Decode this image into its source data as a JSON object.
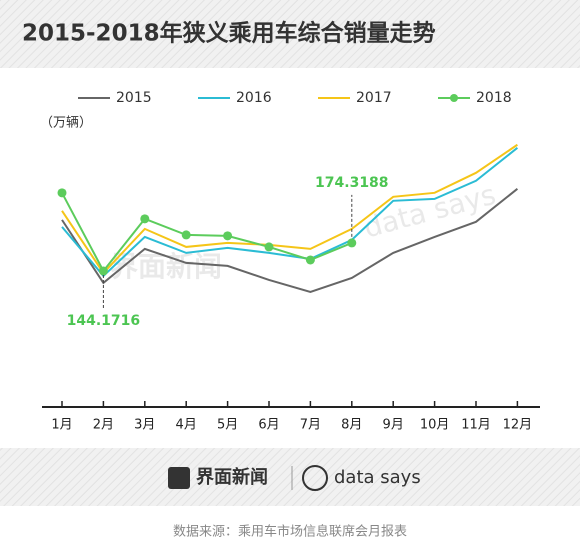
{
  "chart_data": {
    "type": "line",
    "title": "2015-2018年狭义乘用车综合销量走势",
    "unit_label": "（万辆）",
    "categories": [
      "1月",
      "2月",
      "3月",
      "4月",
      "5月",
      "6月",
      "7月",
      "8月",
      "9月",
      "10月",
      "11月",
      "12月"
    ],
    "series": [
      {
        "name": "2015",
        "color": "#666666",
        "values": [
          199.1,
          131.3,
          167.9,
          152.8,
          149.6,
          134.5,
          121.6,
          136.6,
          163.6,
          180.8,
          197.0,
          232.5
        ]
      },
      {
        "name": "2016",
        "color": "#2bbcd4",
        "values": [
          191.6,
          138.8,
          180.8,
          163.6,
          169.0,
          163.6,
          157.1,
          177.6,
          219.6,
          221.7,
          241.1,
          276.6
        ]
      },
      {
        "name": "2017",
        "color": "#f5c518",
        "values": [
          208.8,
          142.0,
          189.4,
          170.0,
          174.3,
          172.2,
          167.9,
          189.4,
          223.9,
          228.2,
          249.7,
          279.9
        ]
      },
      {
        "name": "2018",
        "color": "#5ccc5c",
        "markers": true,
        "values": [
          228.2,
          144.1716,
          200.2,
          182.9,
          181.9,
          170.0,
          156.0,
          174.3188,
          null,
          null,
          null,
          null
        ],
        "value_labels": [
          null,
          "144.1716",
          null,
          null,
          null,
          null,
          null,
          "174.3188",
          null,
          null,
          null,
          null
        ]
      }
    ],
    "ylim": [
      0,
      285
    ]
  },
  "footer": {
    "brand": "界面新闻",
    "partner": "data says",
    "source": "数据来源：乘用车市场信息联席会月报表"
  }
}
